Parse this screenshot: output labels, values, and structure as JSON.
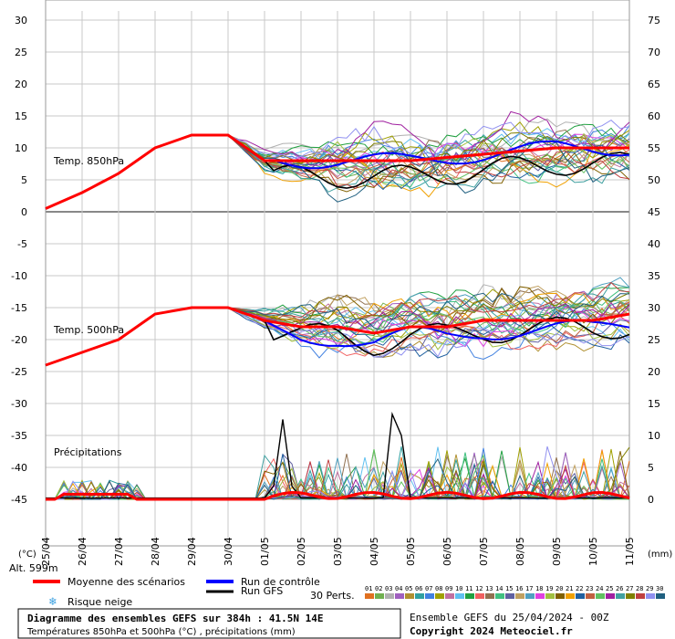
{
  "chart_data": {
    "type": "line",
    "title": "Diagramme des ensembles GEFS sur 384h : 41.5N 14E",
    "subtitle": "Températures 850hPa et 500hPa (°C) , précipitations (mm)",
    "run_info": "Ensemble GEFS du 25/04/2024 - 00Z",
    "copyright": "Copyright 2024 Meteociel.fr",
    "altitude": "Alt. 599m",
    "left_unit": "(°C)",
    "right_unit": "(mm)",
    "panel_labels": {
      "t850": "Temp. 850hPa",
      "t500": "Temp. 500hPa",
      "precip": "Précipitations"
    },
    "left_axis": {
      "ticks": [
        "30",
        "25",
        "20",
        "15",
        "10",
        "5",
        "0",
        "-5",
        "-10",
        "-15",
        "-20",
        "-25",
        "-30",
        "-35",
        "-40",
        "-45"
      ],
      "range": [
        -45,
        30
      ]
    },
    "right_axis": {
      "ticks": [
        "75",
        "70",
        "65",
        "60",
        "55",
        "50",
        "45",
        "40",
        "35",
        "30",
        "25",
        "20",
        "15",
        "10",
        "5",
        "0"
      ]
    },
    "x_labels": [
      "25/04",
      "26/04",
      "27/04",
      "28/04",
      "29/04",
      "30/04",
      "01/05",
      "02/05",
      "03/05",
      "04/05",
      "05/05",
      "06/05",
      "07/05",
      "08/05",
      "09/05",
      "10/05",
      "11/05"
    ],
    "legend": {
      "mean": "Moyenne des scénarios",
      "control": "Run de contrôle",
      "gfs": "Run GFS",
      "snow": "Risque neige",
      "perts": "30 Perts.",
      "pert_ids": [
        "01",
        "02",
        "03",
        "04",
        "05",
        "06",
        "07",
        "08",
        "09",
        "10",
        "11",
        "12",
        "13",
        "14",
        "15",
        "16",
        "17",
        "18",
        "19",
        "20",
        "21",
        "22",
        "23",
        "24",
        "25",
        "26",
        "27",
        "28",
        "29",
        "30"
      ]
    },
    "colors": {
      "mean": "#ff0000",
      "control": "#0000ff",
      "gfs": "#000000",
      "perts": [
        "#e07020",
        "#70b050",
        "#b0b0b0",
        "#a060c0",
        "#b09030",
        "#30a0a0",
        "#4080e0",
        "#a0a000",
        "#c070a0",
        "#60c0f0",
        "#20a040",
        "#f06060",
        "#907050",
        "#40c080",
        "#6060a0",
        "#c0a060",
        "#50a0c0",
        "#e040e0",
        "#a0c040",
        "#806000",
        "#f0a000",
        "#2060a0",
        "#c06040",
        "#60c060",
        "#a020a0",
        "#40a0a0",
        "#808000",
        "#c04040",
        "#9090f0",
        "#206080"
      ]
    },
    "series_summary": {
      "t850_mean": [
        0.5,
        3,
        6,
        10,
        12,
        12,
        8,
        8,
        8,
        8,
        8,
        8.5,
        9,
        9.5,
        10,
        10,
        10
      ],
      "t500_mean": [
        -24,
        -22,
        -20,
        -16,
        -15,
        -15,
        -17,
        -18,
        -18,
        -19,
        -18,
        -18,
        -17,
        -17,
        -17,
        -17,
        -16
      ],
      "precip_gfs_peaks_mm": [
        {
          "x": "01/05",
          "value": 12.5
        },
        {
          "x": "04/05",
          "value": 20
        }
      ]
    }
  }
}
